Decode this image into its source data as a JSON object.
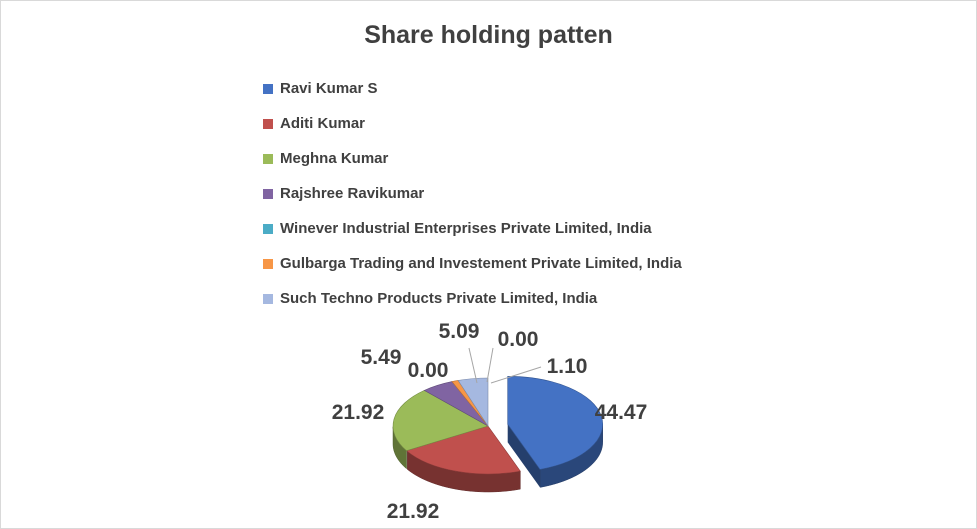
{
  "chart_data": {
    "type": "pie",
    "title": "Share holding patten",
    "legend_position": "top",
    "categories": [
      "Ravi Kumar S",
      "Aditi Kumar",
      "Meghna Kumar",
      "Rajshree Ravikumar",
      "Winever Industrial Enterprises Private Limited, India",
      "Gulbarga Trading and Investement Private Limited, India",
      "Such Techno Products Private Limited, India"
    ],
    "values": [
      44.47,
      21.92,
      21.92,
      5.49,
      0.0,
      1.1,
      5.09
    ],
    "data_labels": [
      "44.47",
      "21.92",
      "21.92",
      "5.49",
      "0.00",
      "1.10",
      "5.09"
    ],
    "extra_labels": [
      "0.00"
    ],
    "colors": [
      "#4472c4",
      "#c0504d",
      "#9bbb59",
      "#8064a2",
      "#4bacc6",
      "#f79646",
      "#a5b8e0"
    ]
  }
}
